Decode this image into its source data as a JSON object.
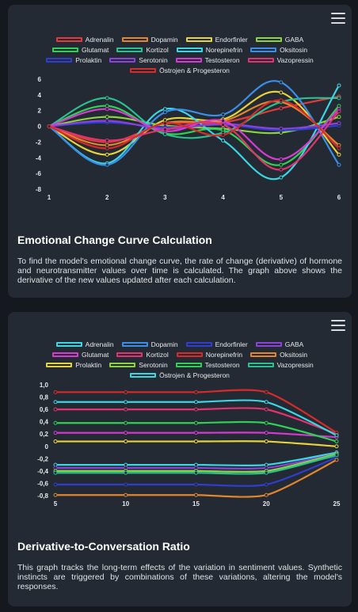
{
  "charts": [
    {
      "title": "Emotional Change Curve Calculation",
      "description": "To find the model's emotional change curve, the rate of change (derivative) of hormone and neurotransmitter values over time is calculated. The graph above shows the derivative of the new values updated after each calculation.",
      "chart_data": {
        "type": "line",
        "x": [
          1,
          2,
          3,
          4,
          5,
          6
        ],
        "ylim": [
          -8,
          6
        ],
        "yticks": [
          6,
          4,
          2,
          0,
          -2,
          -4,
          -6,
          -8
        ],
        "xticks": [
          1,
          2,
          3,
          4,
          5,
          6
        ],
        "grid": false,
        "legend_position": "top",
        "series": [
          {
            "name": "Adrenalin",
            "color": "#e03a3e",
            "values": [
              0,
              -2.0,
              0.3,
              0.5,
              2.3,
              3.8
            ]
          },
          {
            "name": "Dopamin",
            "color": "#e0872e",
            "values": [
              0,
              -2.4,
              0.4,
              0.7,
              3.1,
              -2.4
            ]
          },
          {
            "name": "Endorfinler",
            "color": "#e6d23a",
            "values": [
              0,
              -3.6,
              0.8,
              0.9,
              4.3,
              -3.6
            ]
          },
          {
            "name": "GABA",
            "color": "#8bd33f",
            "values": [
              0,
              1.2,
              0.1,
              -0.3,
              -0.8,
              1.2
            ]
          },
          {
            "name": "Glutamat",
            "color": "#2ed154",
            "values": [
              0,
              2.6,
              -0.9,
              -0.5,
              -4.9,
              2.6
            ]
          },
          {
            "name": "Kortizol",
            "color": "#2bc08f",
            "values": [
              0,
              3.6,
              -1.0,
              -0.8,
              3.1,
              3.6
            ]
          },
          {
            "name": "Norepinefrin",
            "color": "#3ad6e4",
            "values": [
              0,
              -4.7,
              2.2,
              -1.8,
              -6.5,
              5.2
            ]
          },
          {
            "name": "Oksitosin",
            "color": "#3a8ee8",
            "values": [
              0,
              -4.9,
              1.8,
              1.5,
              5.6,
              -4.9
            ]
          },
          {
            "name": "Prolaktin",
            "color": "#2d3ed0",
            "values": [
              0,
              0.5,
              -0.1,
              0.2,
              -0.5,
              0.1
            ]
          },
          {
            "name": "Serotonin",
            "color": "#8a42d8",
            "values": [
              0,
              0.7,
              -0.3,
              0.3,
              -0.3,
              0.4
            ]
          },
          {
            "name": "Testosteron",
            "color": "#d63ad1",
            "values": [
              0,
              2.2,
              -0.6,
              0.7,
              -4.2,
              2.2
            ]
          },
          {
            "name": "Vazopressin",
            "color": "#e0336f",
            "values": [
              0,
              -1.8,
              -0.4,
              0.2,
              -5.5,
              1.9
            ]
          },
          {
            "name": "Östrojen & Progesteron",
            "color": "#d72a2a",
            "values": [
              0,
              -2.8,
              0.4,
              -1.1,
              3.3,
              -2.8
            ]
          }
        ]
      }
    },
    {
      "title": "Derivative-to-Conversation Ratio",
      "description": "This graph tracks the long-term effects of the variation in sentiment values. Synthetic instincts are triggered by combinations of these variations, altering the model's responses.",
      "chart_data": {
        "type": "line",
        "x": [
          5,
          10,
          15,
          20,
          25
        ],
        "ylim": [
          -0.8,
          1.0
        ],
        "yticks": [
          "1,0",
          "0,8",
          "0,6",
          "0,4",
          "0,2",
          "0",
          "-0,2",
          "-0,4",
          "-0,6",
          "-0,8"
        ],
        "xticks": [
          5,
          10,
          15,
          20,
          25
        ],
        "grid": false,
        "legend_position": "top",
        "series": [
          {
            "name": "Adrenalin",
            "color": "#3ad6e4",
            "values": [
              -0.3,
              -0.3,
              -0.3,
              -0.3,
              -0.1
            ]
          },
          {
            "name": "Dopamin",
            "color": "#3a8ee8",
            "values": [
              -0.4,
              -0.4,
              -0.4,
              -0.4,
              -0.15
            ]
          },
          {
            "name": "Endorfinler",
            "color": "#2d3ed0",
            "values": [
              -0.62,
              -0.62,
              -0.62,
              -0.62,
              -0.18
            ]
          },
          {
            "name": "GABA",
            "color": "#8a42d8",
            "values": [
              -0.35,
              -0.35,
              -0.35,
              -0.35,
              -0.12
            ]
          },
          {
            "name": "Glutamat",
            "color": "#d63ad1",
            "values": [
              0.22,
              0.22,
              0.22,
              0.22,
              0.15
            ]
          },
          {
            "name": "Kortizol",
            "color": "#e0336f",
            "values": [
              0.6,
              0.6,
              0.6,
              0.6,
              0.2
            ]
          },
          {
            "name": "Norepinefrin",
            "color": "#d72a2a",
            "values": [
              0.88,
              0.88,
              0.88,
              0.88,
              0.22
            ]
          },
          {
            "name": "Oksitosin",
            "color": "#e0872e",
            "values": [
              -0.79,
              -0.79,
              -0.79,
              -0.79,
              -0.22
            ]
          },
          {
            "name": "Prolaktin",
            "color": "#e6d23a",
            "values": [
              0.08,
              0.08,
              0.08,
              0.08,
              0.0
            ]
          },
          {
            "name": "Serotonin",
            "color": "#8bd33f",
            "values": [
              -0.4,
              -0.4,
              -0.4,
              -0.4,
              -0.12
            ]
          },
          {
            "name": "Testosteron",
            "color": "#2ed154",
            "values": [
              0.38,
              0.38,
              0.38,
              0.38,
              0.08
            ]
          },
          {
            "name": "Vazopressin",
            "color": "#2bc08f",
            "values": [
              -0.43,
              -0.43,
              -0.43,
              -0.43,
              -0.14
            ]
          },
          {
            "name": "Östrojen & Progesteron",
            "color": "#3ad6e4",
            "values": [
              0.72,
              0.72,
              0.72,
              0.72,
              0.18
            ]
          }
        ]
      }
    }
  ]
}
